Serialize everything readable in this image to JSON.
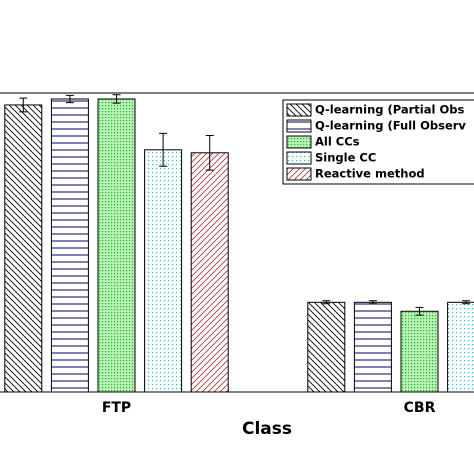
{
  "chart_data": {
    "type": "bar",
    "x_label": "Class",
    "categories": [
      "FTP",
      "CBR"
    ],
    "ylim": [
      0,
      1
    ],
    "series": [
      {
        "name": "Q-learning (Partial Obs",
        "color": "#000000",
        "pattern": "backslash",
        "values": [
          0.96,
          0.3
        ],
        "errors": [
          0.023,
          0.005
        ]
      },
      {
        "name": "Q-learning (Full Observ",
        "color": "#000066",
        "pattern": "horizontal",
        "values": [
          0.98,
          0.3
        ],
        "errors": [
          0.012,
          0.005
        ]
      },
      {
        "name": "All CCs",
        "color": "#22bb22",
        "pattern": "dots-dense",
        "values": [
          0.98,
          0.27
        ],
        "errors": [
          0.014,
          0.013
        ]
      },
      {
        "name": "Single CC",
        "color": "#22cccc",
        "pattern": "dots",
        "values": [
          0.81,
          0.3
        ],
        "errors": [
          0.055,
          0.005
        ]
      },
      {
        "name": "Reactive method",
        "color": "#aa3333",
        "pattern": "slash",
        "values": [
          0.8,
          null
        ],
        "errors": [
          0.058,
          null
        ]
      }
    ]
  }
}
